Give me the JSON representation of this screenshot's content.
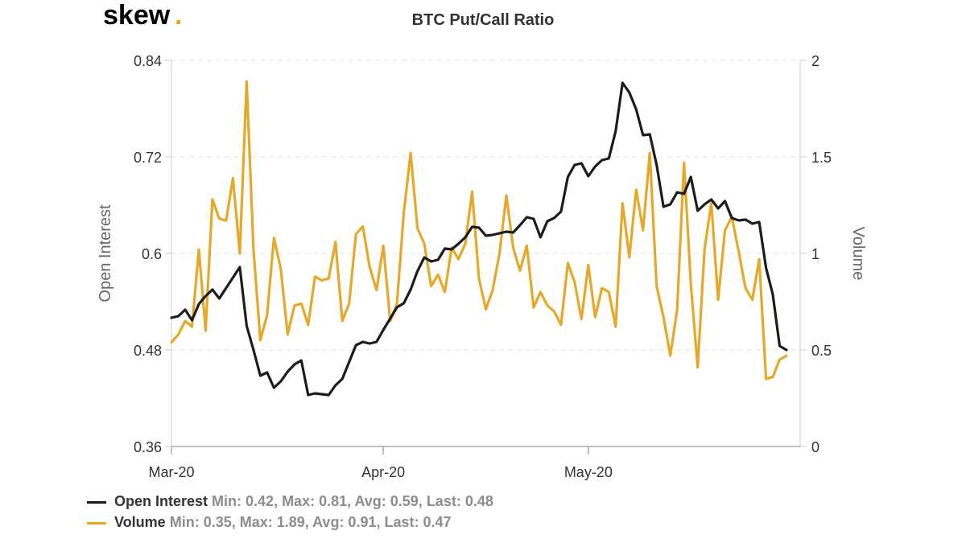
{
  "logo": {
    "text": "skew",
    "dot": ".",
    "dot_color": "#e6a81e"
  },
  "chart_data": {
    "type": "line",
    "title": "BTC Put/Call Ratio",
    "x_ticks": [
      {
        "label": "Mar-20",
        "day": 0
      },
      {
        "label": "Apr-20",
        "day": 31
      },
      {
        "label": "May-20",
        "day": 61
      }
    ],
    "x_range": [
      0,
      92
    ],
    "left_axis": {
      "label": "Open Interest",
      "ylim": [
        0.36,
        0.84
      ],
      "ticks": [
        "0.36",
        "0.48",
        "0.6",
        "0.72",
        "0.84"
      ]
    },
    "right_axis": {
      "label": "Volume",
      "ylim": [
        0,
        2
      ],
      "ticks": [
        "0",
        "0.5",
        "1",
        "1.5",
        "2"
      ]
    },
    "grid": "horizontal dashed",
    "legend_position": "bottom-left",
    "series": [
      {
        "name": "Open Interest",
        "axis": "left",
        "color": "#1c1c1c",
        "stats": "Min: 0.42, Max: 0.81, Avg: 0.59, Last: 0.48",
        "values": [
          0.52,
          0.522,
          0.53,
          0.517,
          0.537,
          0.547,
          0.555,
          0.544,
          0.557,
          0.57,
          0.583,
          0.51,
          0.48,
          0.448,
          0.452,
          0.433,
          0.441,
          0.453,
          0.462,
          0.467,
          0.424,
          0.426,
          0.425,
          0.424,
          0.436,
          0.444,
          0.465,
          0.486,
          0.49,
          0.488,
          0.49,
          0.505,
          0.519,
          0.533,
          0.538,
          0.555,
          0.578,
          0.595,
          0.59,
          0.592,
          0.606,
          0.605,
          0.612,
          0.62,
          0.633,
          0.632,
          0.622,
          0.623,
          0.625,
          0.627,
          0.626,
          0.635,
          0.645,
          0.643,
          0.62,
          0.64,
          0.644,
          0.652,
          0.695,
          0.71,
          0.712,
          0.696,
          0.708,
          0.716,
          0.718,
          0.752,
          0.812,
          0.8,
          0.779,
          0.747,
          0.748,
          0.71,
          0.658,
          0.661,
          0.676,
          0.674,
          0.695,
          0.653,
          0.661,
          0.667,
          0.656,
          0.665,
          0.644,
          0.641,
          0.642,
          0.637,
          0.639,
          0.582,
          0.549,
          0.485,
          0.48
        ]
      },
      {
        "name": "Volume",
        "axis": "right",
        "color": "#e6a829",
        "stats": "Min: 0.35, Max: 1.89, Avg: 0.91, Last: 0.47",
        "values": [
          0.54,
          0.58,
          0.65,
          0.62,
          1.02,
          0.6,
          1.28,
          1.18,
          1.17,
          1.39,
          1,
          1.89,
          1.02,
          0.55,
          0.68,
          1.08,
          0.92,
          0.58,
          0.73,
          0.74,
          0.63,
          0.88,
          0.86,
          0.87,
          1.06,
          0.65,
          0.74,
          1.1,
          1.14,
          0.93,
          0.81,
          1.04,
          0.65,
          0.74,
          1.21,
          1.52,
          1.13,
          1.05,
          0.83,
          0.89,
          0.8,
          1.03,
          0.97,
          1.05,
          1.32,
          0.87,
          0.71,
          0.81,
          1,
          1.3,
          1.03,
          0.91,
          1.04,
          0.72,
          0.8,
          0.73,
          0.7,
          0.63,
          0.95,
          0.85,
          0.66,
          0.94,
          0.67,
          0.82,
          0.8,
          0.62,
          1.26,
          0.98,
          1.33,
          1.12,
          1.52,
          0.83,
          0.67,
          0.47,
          0.71,
          1.47,
          0.84,
          0.41,
          1.02,
          1.26,
          0.76,
          1.12,
          1.19,
          1.01,
          0.82,
          0.76,
          0.97,
          0.35,
          0.36,
          0.45,
          0.47
        ]
      }
    ]
  }
}
